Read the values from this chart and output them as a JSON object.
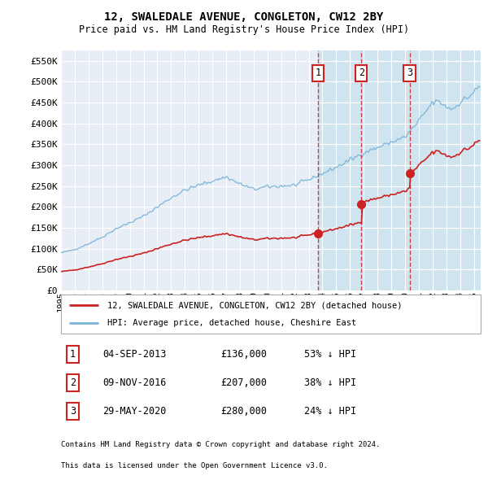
{
  "title": "12, SWALEDALE AVENUE, CONGLETON, CW12 2BY",
  "subtitle": "Price paid vs. HM Land Registry's House Price Index (HPI)",
  "ylim": [
    0,
    575000
  ],
  "xlim_start": 1995.0,
  "xlim_end": 2025.5,
  "yticks": [
    0,
    50000,
    100000,
    150000,
    200000,
    250000,
    300000,
    350000,
    400000,
    450000,
    500000,
    550000
  ],
  "ytick_labels": [
    "£0",
    "£50K",
    "£100K",
    "£150K",
    "£200K",
    "£250K",
    "£300K",
    "£350K",
    "£400K",
    "£450K",
    "£500K",
    "£550K"
  ],
  "xtick_years": [
    1995,
    1996,
    1997,
    1998,
    1999,
    2000,
    2001,
    2002,
    2003,
    2004,
    2005,
    2006,
    2007,
    2008,
    2009,
    2010,
    2011,
    2012,
    2013,
    2014,
    2015,
    2016,
    2017,
    2018,
    2019,
    2020,
    2021,
    2022,
    2023,
    2024,
    2025
  ],
  "hpi_color": "#7ab4d8",
  "price_color": "#cc2222",
  "sale_line_color": "#cc2222",
  "sale_box_color": "#cc2222",
  "plot_bg_color": "#e8eef5",
  "shade_color": "#d0e4f0",
  "grid_color": "#ffffff",
  "sales": [
    {
      "year": 2013.67,
      "price": 136000,
      "label": "1"
    },
    {
      "year": 2016.85,
      "price": 207000,
      "label": "2"
    },
    {
      "year": 2020.41,
      "price": 280000,
      "label": "3"
    }
  ],
  "legend_line1": "12, SWALEDALE AVENUE, CONGLETON, CW12 2BY (detached house)",
  "legend_line2": "HPI: Average price, detached house, Cheshire East",
  "footer1": "Contains HM Land Registry data © Crown copyright and database right 2024.",
  "footer2": "This data is licensed under the Open Government Licence v3.0.",
  "table_rows": [
    [
      "1",
      "04-SEP-2013",
      "£136,000",
      "53% ↓ HPI"
    ],
    [
      "2",
      "09-NOV-2016",
      "£207,000",
      "38% ↓ HPI"
    ],
    [
      "3",
      "29-MAY-2020",
      "£280,000",
      "24% ↓ HPI"
    ]
  ]
}
